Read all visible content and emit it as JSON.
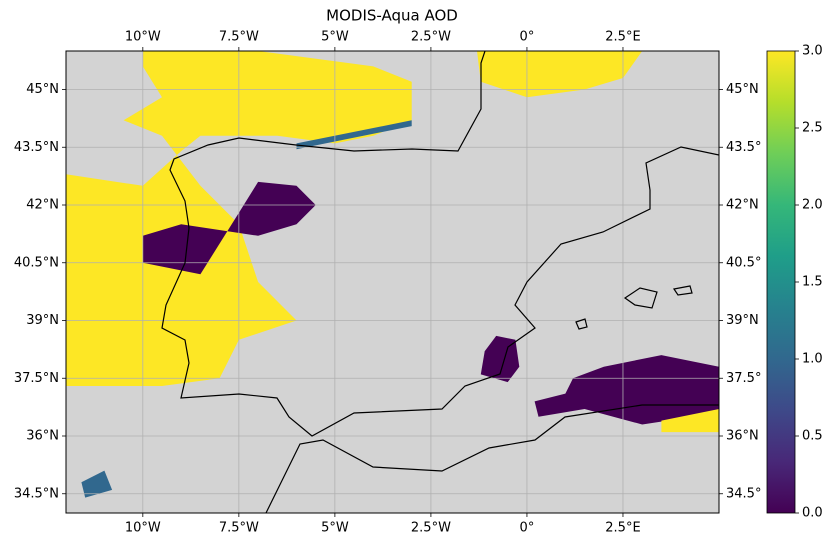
{
  "chart_data": {
    "type": "map",
    "title": "MODIS-Aqua AOD",
    "xlim": [
      -12,
      5
    ],
    "ylim": [
      34,
      46
    ],
    "xticks": [
      {
        "value": -10,
        "label": "10°W"
      },
      {
        "value": -7.5,
        "label": "7.5°W"
      },
      {
        "value": -5,
        "label": "5°W"
      },
      {
        "value": -2.5,
        "label": "2.5°W"
      },
      {
        "value": 0,
        "label": "0°"
      },
      {
        "value": 2.5,
        "label": "2.5°E"
      }
    ],
    "yticks": [
      {
        "value": 34.5,
        "label": "34.5°N"
      },
      {
        "value": 36,
        "label": "36°N"
      },
      {
        "value": 37.5,
        "label": "37.5°N"
      },
      {
        "value": 39,
        "label": "39°N"
      },
      {
        "value": 40.5,
        "label": "40.5°N"
      },
      {
        "value": 42,
        "label": "42°N"
      },
      {
        "value": 43.5,
        "label": "43.5°N"
      },
      {
        "value": 45,
        "label": "45°N"
      }
    ],
    "y2ticks": [
      {
        "value": 34.5,
        "label": "34.5°"
      },
      {
        "value": 36,
        "label": "36°N"
      },
      {
        "value": 37.5,
        "label": "37.5°"
      },
      {
        "value": 39,
        "label": "39°N"
      },
      {
        "value": 40.5,
        "label": "40.5°"
      },
      {
        "value": 42,
        "label": "42°N"
      },
      {
        "value": 43.5,
        "label": "43.5°"
      },
      {
        "value": 45,
        "label": "45°N"
      }
    ],
    "grid": true,
    "colormap": "viridis",
    "clim": [
      0,
      3
    ],
    "cticks": [
      {
        "value": 0,
        "label": "0.0"
      },
      {
        "value": 0.5,
        "label": "0.5"
      },
      {
        "value": 1,
        "label": "1.0"
      },
      {
        "value": 1.5,
        "label": "1.5"
      },
      {
        "value": 2,
        "label": "2.0"
      },
      {
        "value": 2.5,
        "label": "2.5"
      },
      {
        "value": 3,
        "label": "3.0"
      }
    ],
    "patches": [
      {
        "value": 3,
        "lon": [
          -12,
          -12,
          -10,
          -9,
          -8.5,
          -6.5,
          -5,
          -4,
          -3,
          -3,
          -4,
          -7,
          -10,
          -10,
          -9.5,
          -10.5,
          -9.5,
          -8.5,
          -7.5,
          -7,
          -6,
          -7.5,
          -8,
          -9.5
        ],
        "lat": [
          37.3,
          42.8,
          42.5,
          43.4,
          43.8,
          43.8,
          43.6,
          43.8,
          44.2,
          45.2,
          45.6,
          46,
          46,
          45.6,
          44.8,
          44.2,
          43.8,
          42.5,
          41.5,
          40,
          39,
          38.5,
          37.5,
          37.3
        ]
      },
      {
        "value": 3,
        "lon": [
          -1.3,
          -1.2,
          0,
          1.5,
          2.5,
          3
        ],
        "lat": [
          46,
          45.2,
          44.8,
          45,
          45.3,
          46
        ]
      },
      {
        "value": 0,
        "lon": [
          -10,
          -9,
          -7,
          -6,
          -5.5,
          -6,
          -7,
          -7.5,
          -8.5,
          -10
        ],
        "lat": [
          41.2,
          41.5,
          41.2,
          41.5,
          42,
          42.5,
          42.6,
          41.8,
          40.2,
          40.5
        ]
      },
      {
        "value": 0,
        "lon": [
          -1.2,
          -0.5,
          -0.2,
          -0.3,
          -0.8,
          -1.1
        ],
        "lat": [
          37.6,
          37.4,
          37.8,
          38.5,
          38.6,
          38.2
        ]
      },
      {
        "value": 0,
        "lon": [
          1,
          1.2,
          2,
          3.5,
          5,
          5,
          3,
          1.5,
          0.3,
          0.2
        ],
        "lat": [
          37.1,
          37.5,
          37.8,
          38.1,
          37.8,
          36.6,
          36.3,
          36.7,
          36.5,
          36.9
        ]
      },
      {
        "value": 3,
        "lon": [
          3.5,
          5,
          5,
          3.5
        ],
        "lat": [
          36.4,
          36.7,
          36.1,
          36.1
        ]
      },
      {
        "value": 1,
        "lon": [
          -6,
          -3,
          -3,
          -6
        ],
        "lat": [
          43.6,
          44.2,
          44.05,
          43.45
        ]
      },
      {
        "value": 1,
        "lon": [
          -11.6,
          -11,
          -10.8,
          -11.5
        ],
        "lat": [
          34.8,
          35.1,
          34.6,
          34.4
        ]
      }
    ]
  }
}
